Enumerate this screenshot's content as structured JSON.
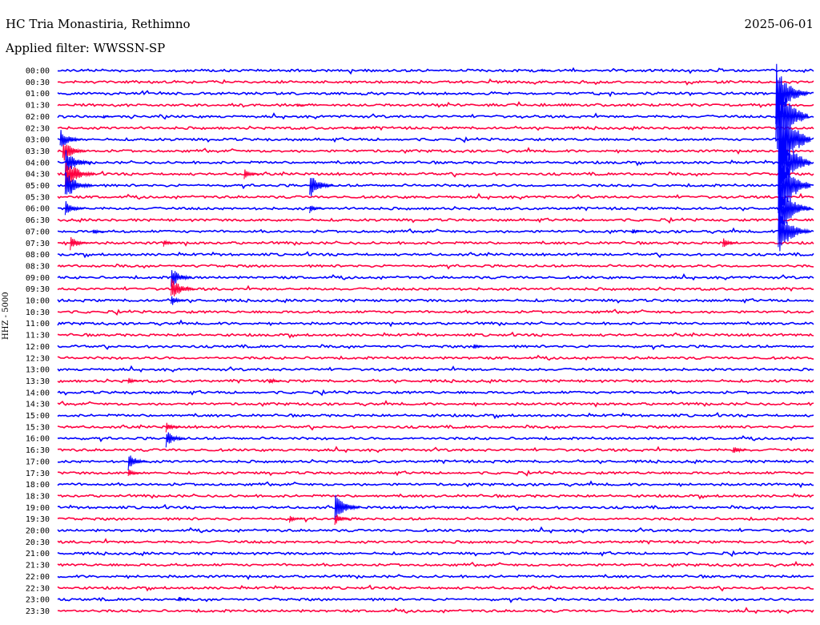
{
  "header": {
    "station": "HC Tria Monastiria, Rethimno",
    "filter": "Applied filter: WWSSN-SP",
    "date": "2025-06-01",
    "channel": "HHZ - 5000"
  },
  "colors": {
    "trace_a": "#0000ff",
    "trace_b": "#ff0040"
  },
  "chart_data": {
    "type": "line",
    "title": "HC Tria Monastiria, Rethimno",
    "subtitle": "Applied filter: WWSSN-SP",
    "ylabel": "HHZ - 5000",
    "grid": false,
    "rows": [
      "00:00",
      "00:30",
      "01:00",
      "01:30",
      "02:00",
      "02:30",
      "03:00",
      "03:30",
      "04:00",
      "04:30",
      "05:00",
      "05:30",
      "06:00",
      "06:30",
      "07:00",
      "07:30",
      "08:00",
      "08:30",
      "09:00",
      "09:30",
      "10:00",
      "10:30",
      "11:00",
      "11:30",
      "12:00",
      "12:30",
      "13:00",
      "13:30",
      "14:00",
      "14:30",
      "15:00",
      "15:30",
      "16:00",
      "16:30",
      "17:00",
      "17:30",
      "18:00",
      "18:30",
      "19:00",
      "19:30",
      "20:00",
      "20:30",
      "21:00",
      "21:30",
      "22:00",
      "22:30",
      "23:00",
      "23:30"
    ],
    "row_minutes": 30,
    "events": [
      {
        "row": 0,
        "minute": 19.2,
        "amp": 2
      },
      {
        "row": 3,
        "minute": 9.5,
        "amp": 2
      },
      {
        "row": 4,
        "minute": 1.8,
        "amp": 2
      },
      {
        "row": 5,
        "minute": 11.8,
        "amp": 2
      },
      {
        "row": 6,
        "minute": 0.1,
        "amp": 14
      },
      {
        "row": 7,
        "minute": 0.2,
        "amp": 16
      },
      {
        "row": 8,
        "minute": 0.3,
        "amp": 18
      },
      {
        "row": 9,
        "minute": 0.3,
        "amp": 22
      },
      {
        "row": 9,
        "minute": 7.4,
        "amp": 7
      },
      {
        "row": 10,
        "minute": 0.3,
        "amp": 20
      },
      {
        "row": 10,
        "minute": 10.0,
        "amp": 17
      },
      {
        "row": 12,
        "minute": 0.3,
        "amp": 12
      },
      {
        "row": 12,
        "minute": 10.0,
        "amp": 6
      },
      {
        "row": 14,
        "minute": 1.4,
        "amp": 4
      },
      {
        "row": 14,
        "minute": 22.8,
        "amp": 4
      },
      {
        "row": 15,
        "minute": 0.5,
        "amp": 10
      },
      {
        "row": 15,
        "minute": 4.2,
        "amp": 5
      },
      {
        "row": 15,
        "minute": 26.4,
        "amp": 7
      },
      {
        "row": 18,
        "minute": 4.5,
        "amp": 14
      },
      {
        "row": 19,
        "minute": 4.5,
        "amp": 16
      },
      {
        "row": 20,
        "minute": 4.5,
        "amp": 8
      },
      {
        "row": 24,
        "minute": 16.5,
        "amp": 4
      },
      {
        "row": 27,
        "minute": 2.8,
        "amp": 5
      },
      {
        "row": 27,
        "minute": 8.4,
        "amp": 5
      },
      {
        "row": 31,
        "minute": 4.3,
        "amp": 7
      },
      {
        "row": 32,
        "minute": 4.3,
        "amp": 12
      },
      {
        "row": 33,
        "minute": 26.8,
        "amp": 7
      },
      {
        "row": 34,
        "minute": 2.8,
        "amp": 12
      },
      {
        "row": 35,
        "minute": 2.8,
        "amp": 6
      },
      {
        "row": 38,
        "minute": 11.0,
        "amp": 18
      },
      {
        "row": 39,
        "minute": 11.0,
        "amp": 8
      },
      {
        "row": 39,
        "minute": 9.2,
        "amp": 5
      },
      {
        "row": 46,
        "minute": 4.8,
        "amp": 3
      },
      {
        "row": 2,
        "minute": 28.5,
        "amp": 40
      },
      {
        "row": 4,
        "minute": 28.5,
        "amp": 60
      },
      {
        "row": 6,
        "minute": 28.6,
        "amp": 70
      },
      {
        "row": 8,
        "minute": 28.6,
        "amp": 60
      },
      {
        "row": 10,
        "minute": 28.6,
        "amp": 55
      },
      {
        "row": 12,
        "minute": 28.6,
        "amp": 40
      },
      {
        "row": 14,
        "minute": 28.6,
        "amp": 30
      }
    ]
  }
}
